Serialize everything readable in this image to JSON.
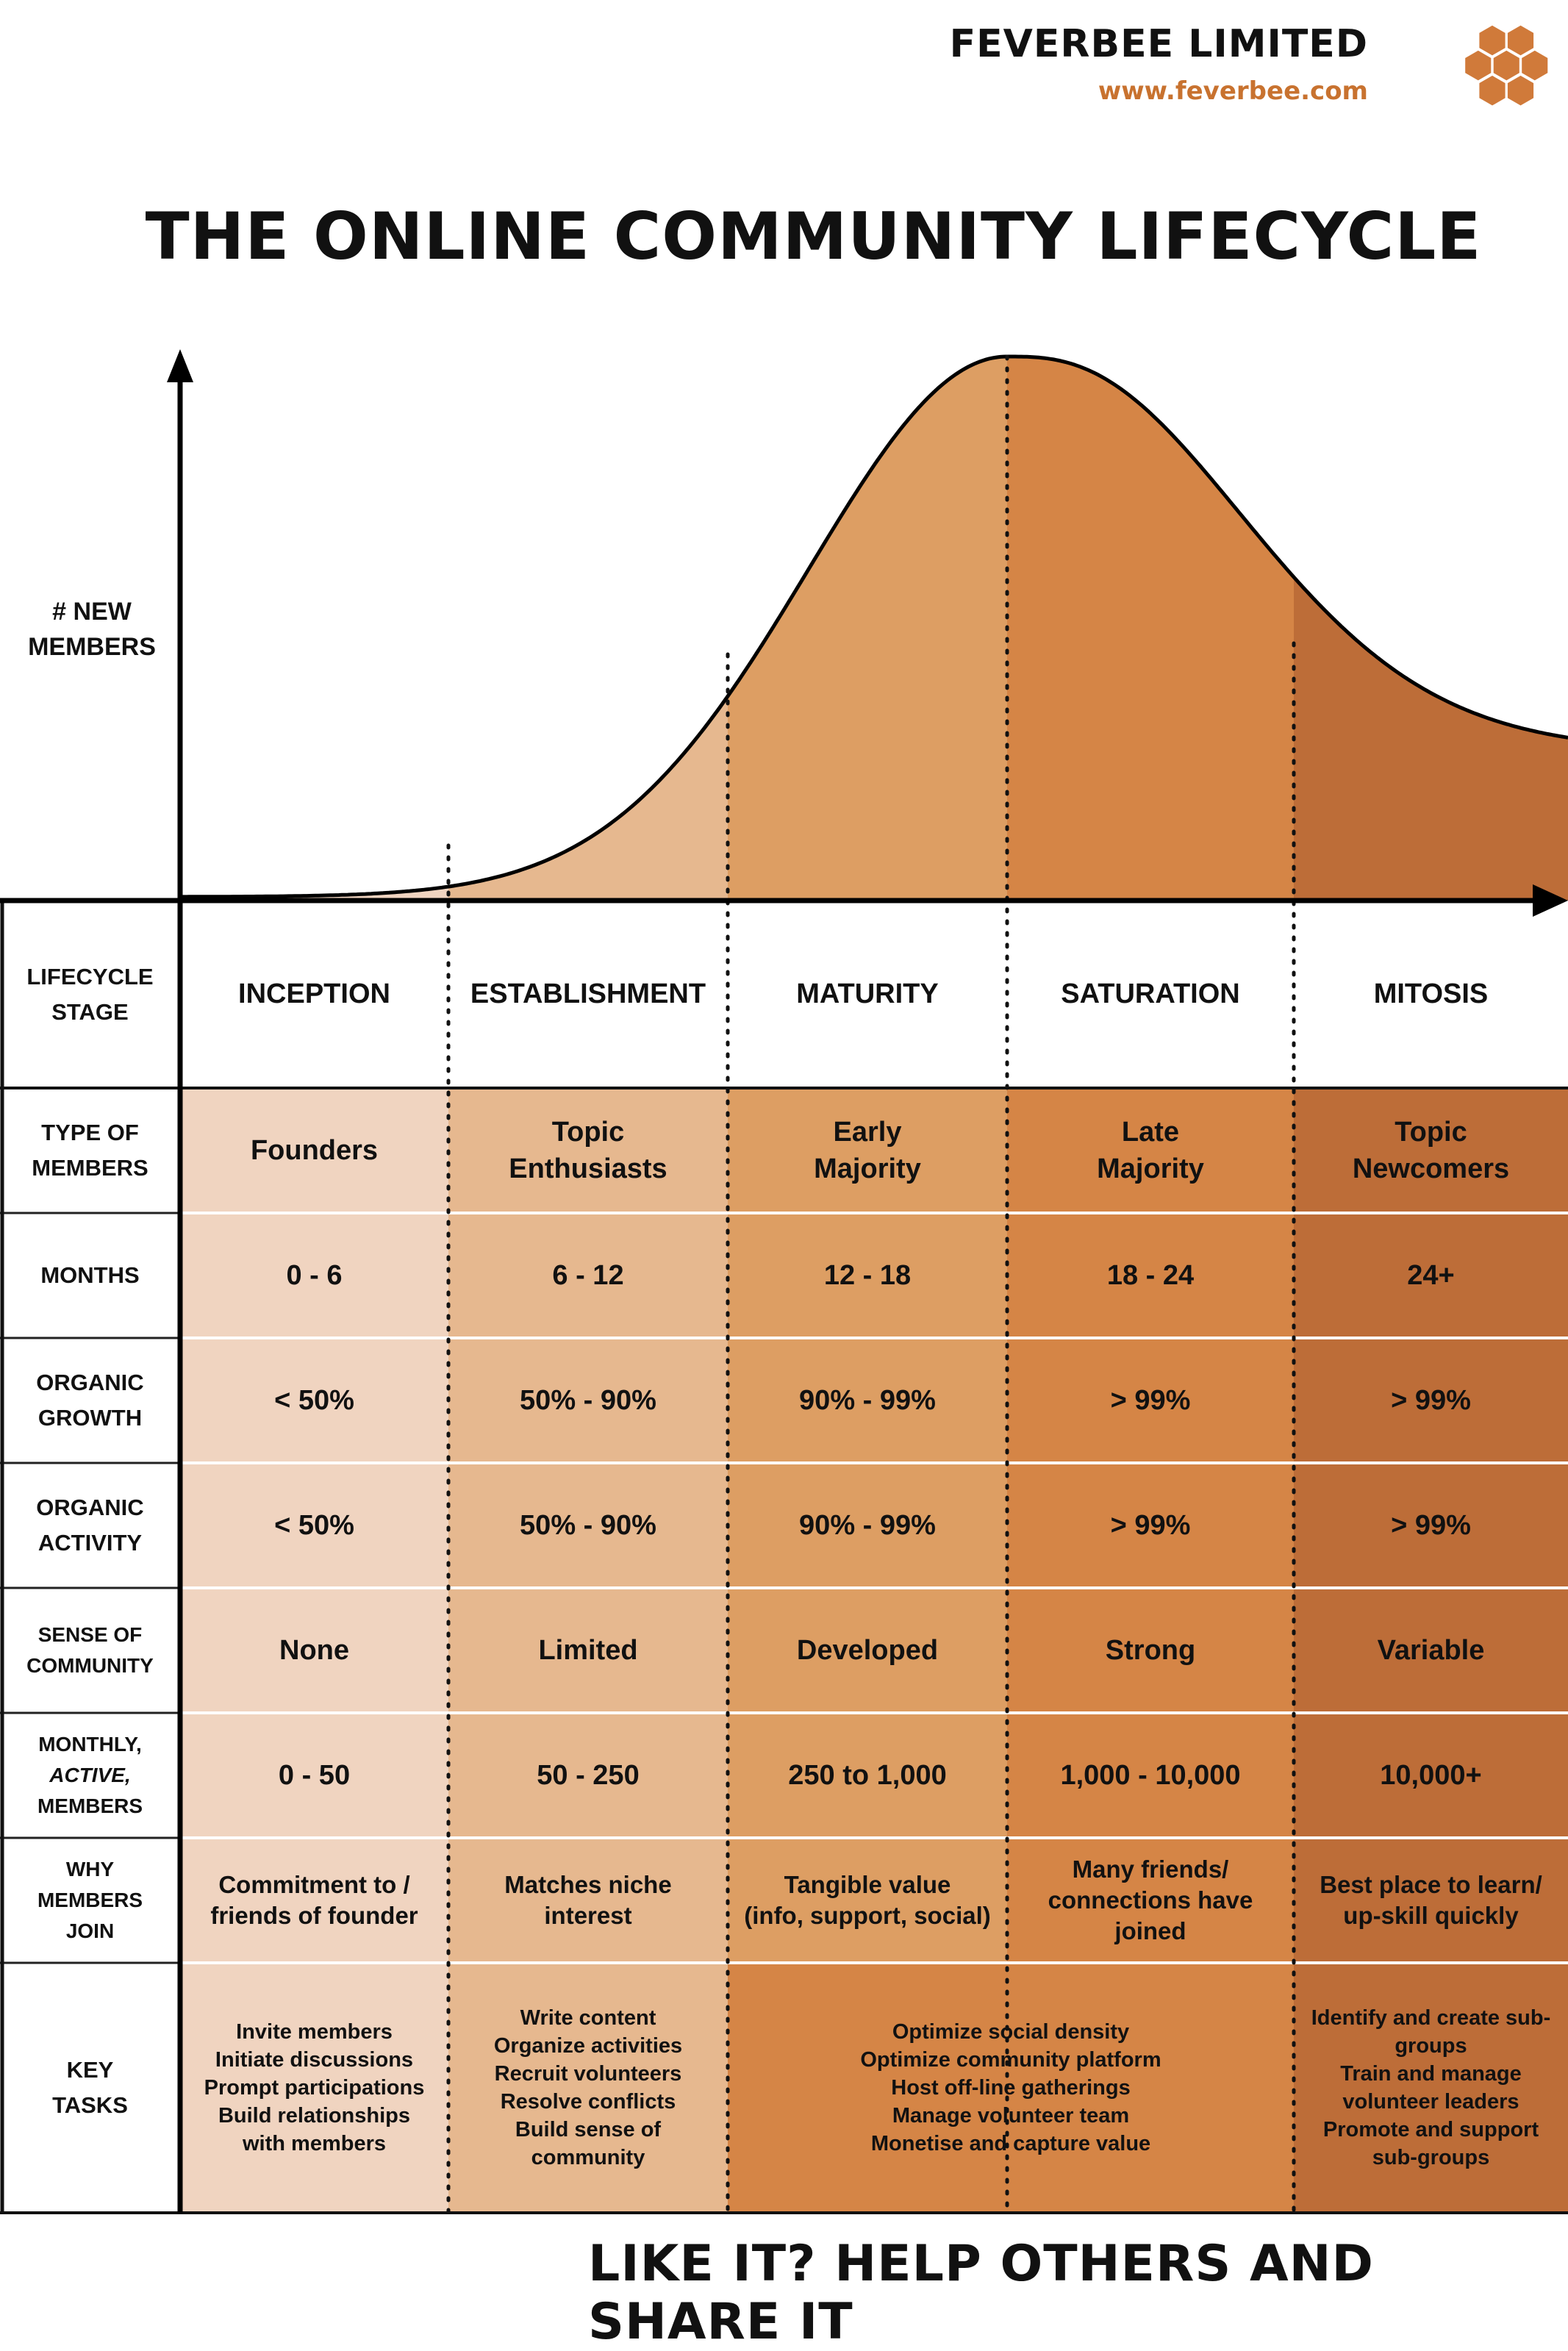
{
  "header": {
    "brand_name": "FEVERBEE LIMITED",
    "brand_url": "www.feverbee.com",
    "logo_icon": "honeycomb-icon",
    "title": "THE ONLINE COMMUNITY LIFECYCLE"
  },
  "chart": {
    "y_label": "# NEW\nMEMBERS"
  },
  "colors": {
    "inception": "#f0d4c0",
    "establishment": "#e6b88f",
    "maturity": "#dd9e63",
    "saturation": "#d58546",
    "mitosis": "#bd6d38",
    "brand_accent": "#c8722f"
  },
  "table": {
    "stage_label": "LIFECYCLE\nSTAGE",
    "stages": [
      "INCEPTION",
      "ESTABLISHMENT",
      "MATURITY",
      "SATURATION",
      "MITOSIS"
    ],
    "rows": [
      {
        "label": "TYPE OF\nMEMBERS",
        "values": [
          "Founders",
          "Topic\nEnthusiasts",
          "Early\nMajority",
          "Late\nMajority",
          "Topic\nNewcomers"
        ]
      },
      {
        "label": "MONTHS",
        "values": [
          "0 - 6",
          "6 - 12",
          "12 - 18",
          "18 - 24",
          "24+"
        ]
      },
      {
        "label": "ORGANIC\nGROWTH",
        "values": [
          "< 50%",
          "50% - 90%",
          "90% - 99%",
          "> 99%",
          "> 99%"
        ]
      },
      {
        "label": "ORGANIC\nACTIVITY",
        "values": [
          "< 50%",
          "50% - 90%",
          "90% - 99%",
          "> 99%",
          "> 99%"
        ]
      },
      {
        "label": "SENSE OF\nCOMMUNITY",
        "values": [
          "None",
          "Limited",
          "Developed",
          "Strong",
          "Variable"
        ]
      },
      {
        "label": "MONTHLY,\nACTIVE,\nMEMBERS",
        "values": [
          "0 - 50",
          "50 - 250",
          "250 to 1,000",
          "1,000 - 10,000",
          "10,000+"
        ]
      },
      {
        "label": "WHY\nMEMBERS\nJOIN",
        "values": [
          "Commitment to /\nfriends of founder",
          "Matches niche\ninterest",
          "Tangible value\n(info, support, social)",
          "Many friends/\nconnections have\njoined",
          "Best place to learn/\nup-skill quickly"
        ]
      }
    ],
    "key_tasks": {
      "label": "KEY\nTASKS",
      "inception": "Invite members\nInitiate discussions\nPrompt participations\nBuild relationships\nwith members",
      "establishment": "Write content\nOrganize activities\nRecruit volunteers\nResolve conflicts\nBuild sense of\ncommunity",
      "maturity_saturation": "Optimize social density\nOptimize community platform\nHost off-line gatherings\nManage volunteer team\nMonetise and capture value",
      "mitosis": "Identify and create sub-\ngroups\nTrain and manage\nvolunteer leaders\nPromote and support\nsub-groups"
    }
  },
  "footer": {
    "cta": "LIKE IT? HELP OTHERS AND SHARE IT"
  }
}
